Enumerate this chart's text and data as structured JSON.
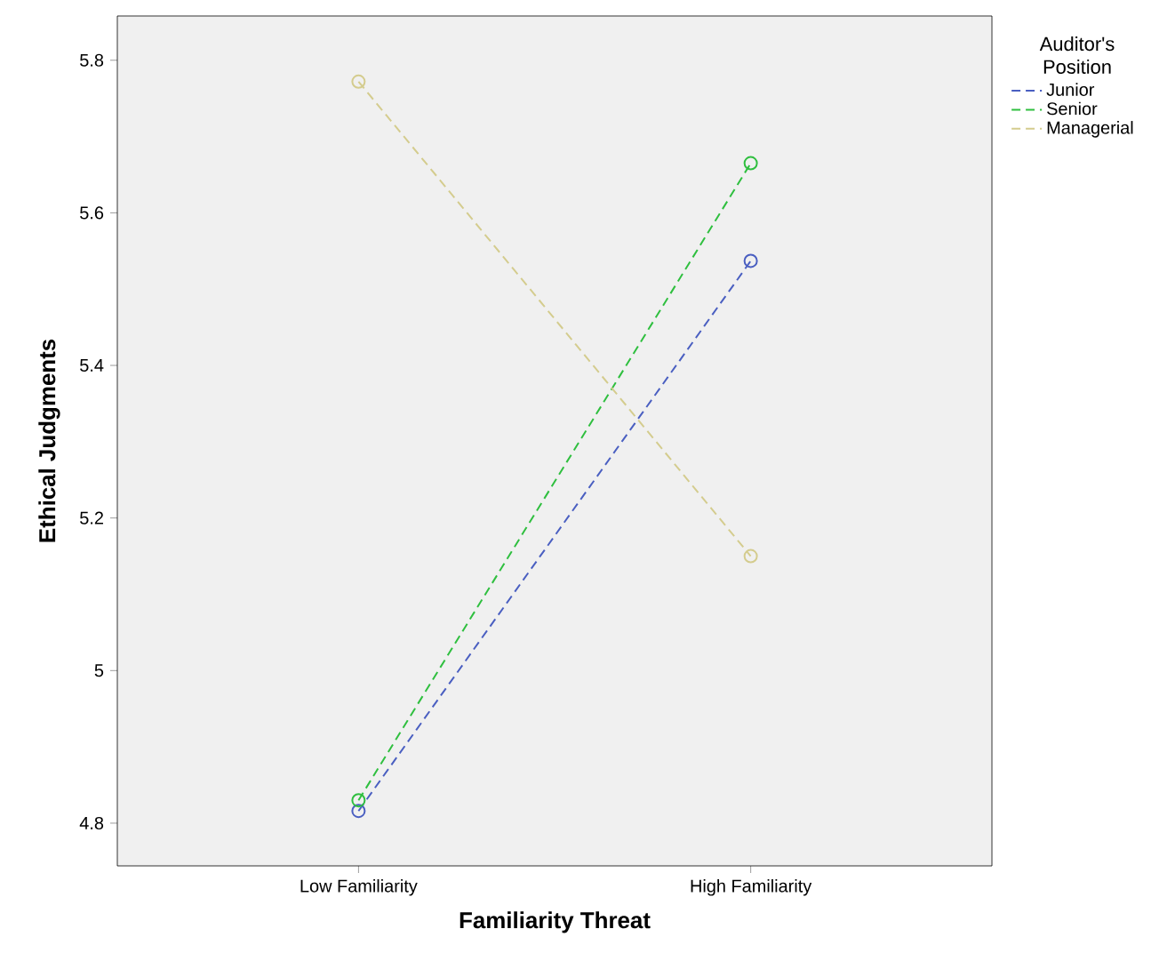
{
  "chart_data": {
    "type": "line",
    "xlabel": "Familiarity Threat",
    "ylabel": "Ethical Judgments",
    "legend_title": "Auditor's Position",
    "categories": [
      "Low  Familiarity",
      "High Familiarity"
    ],
    "series": [
      {
        "name": "Junior",
        "color": "#4a5fc1",
        "values": [
          4.816,
          5.537
        ]
      },
      {
        "name": "Senior",
        "color": "#2fbf3f",
        "values": [
          4.83,
          5.665
        ]
      },
      {
        "name": "Managerial",
        "color": "#d4cc8e",
        "values": [
          5.772,
          5.15
        ]
      }
    ],
    "ylim": [
      4.744,
      5.858
    ],
    "yticks": [
      4.8,
      5,
      5.2,
      5.4,
      5.6,
      5.8
    ],
    "grid": false,
    "legend": "top right",
    "marker": "circle",
    "line_style": "dashed"
  }
}
